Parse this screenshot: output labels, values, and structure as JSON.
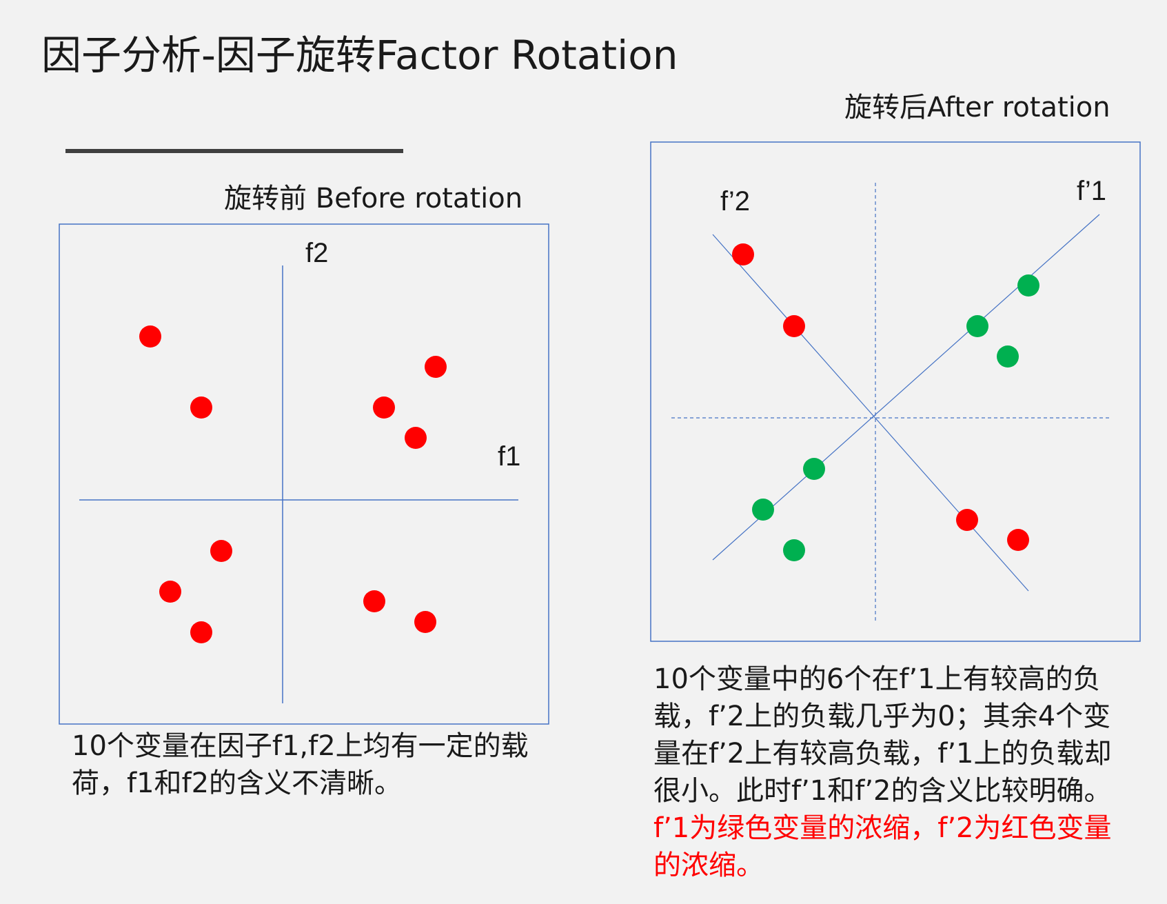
{
  "title": "因子分析-因子旋转Factor Rotation",
  "before": {
    "caption": "旋转前 Before rotation",
    "axis_x": "f1",
    "axis_y": "f2",
    "description": "10个变量在因子f1,f2上均有一定的载荷，f1和f2的含义不清晰。"
  },
  "after": {
    "caption": "旋转后After rotation",
    "axis_1": "f’1",
    "axis_2": "f’2",
    "description_black": "10个变量中的6个在f’1上有较高的负载，f’2上的负载几乎为0；其余4个变量在f’2上有较高负载，f’1上的负载却很小。此时f’1和f’2的含义比较明确。",
    "description_red": "f’1为绿色变量的浓缩，f’2为红色变量的浓缩。"
  },
  "colors": {
    "red": "#ff0000",
    "green": "#00b050",
    "axis": "#4472c4"
  }
}
